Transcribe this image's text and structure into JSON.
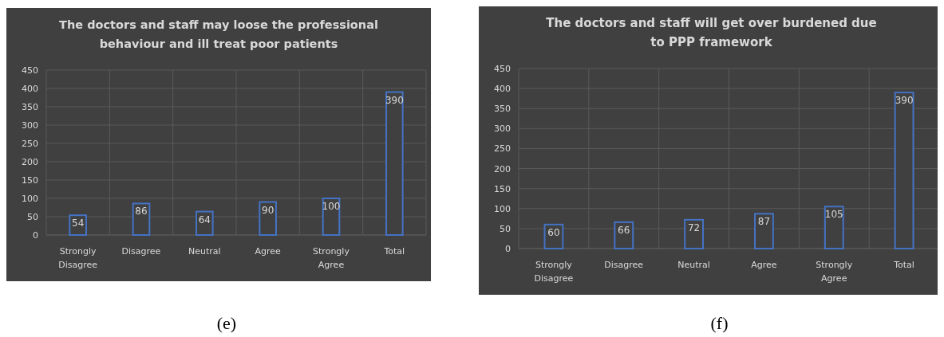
{
  "chart_data": [
    {
      "type": "bar",
      "title": "The doctors and staff may loose the professional behaviour and ill treat poor patients",
      "categories": [
        "Strongly Disagree",
        "Disagree",
        "Neutral",
        "Agree",
        "Strongly Agree",
        "Total"
      ],
      "values": [
        54,
        86,
        64,
        90,
        100,
        390
      ],
      "color": "#4472c4",
      "ylim": [
        0,
        450
      ],
      "yticks": [
        0,
        50,
        100,
        150,
        200,
        250,
        300,
        350,
        400,
        450
      ],
      "grid": true,
      "data_labels": true,
      "annotations": [
        "(e)"
      ]
    },
    {
      "type": "bar",
      "title": "The doctors and staff will get over burdened due to PPP framework",
      "categories": [
        "Strongly Disagree",
        "Disagree",
        "Neutral",
        "Agree",
        "Strongly Agree",
        "Total"
      ],
      "values": [
        60,
        66,
        72,
        87,
        105,
        390
      ],
      "color": "#4472c4",
      "ylim": [
        0,
        450
      ],
      "yticks": [
        0,
        50,
        100,
        150,
        200,
        250,
        300,
        350,
        400,
        450
      ],
      "grid": true,
      "data_labels": true,
      "annotations": [
        "(f)"
      ]
    }
  ]
}
